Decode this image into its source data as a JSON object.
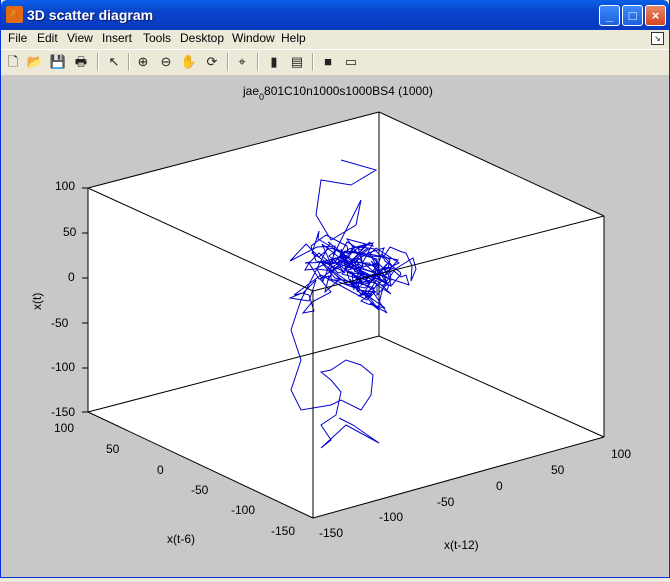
{
  "window": {
    "title": "3D scatter diagram",
    "controls": [
      "_",
      "□",
      "×"
    ]
  },
  "menu": [
    "File",
    "Edit",
    "View",
    "Insert",
    "Tools",
    "Desktop",
    "Window",
    "Help"
  ],
  "toolbar_icons": [
    "new-file",
    "open-folder",
    "save",
    "print",
    "select-arrow",
    "zoom-in",
    "zoom-out",
    "pan",
    "rotate-3d",
    "data-cursor",
    "colorbar",
    "legend",
    "hide-plot-tools",
    "show-plot-tools"
  ],
  "chart_data": {
    "type": "line",
    "title": "jae",
    "title_sub": "0",
    "title_rest": "801C10n1000s1000BS4 (1000)",
    "xlabel": "x(t-6)",
    "ylabel": "x(t-12)",
    "zlabel": "x(t)",
    "xlim": [
      -150,
      100
    ],
    "ylim": [
      -150,
      100
    ],
    "zlim": [
      -150,
      100
    ],
    "x_ticks": [
      "100",
      "50",
      "0",
      "-50",
      "-100",
      "-150"
    ],
    "y_ticks": [
      "-150",
      "-100",
      "-50",
      "0",
      "50",
      "100"
    ],
    "z_ticks": [
      "100",
      "50",
      "0",
      "-50",
      "-100",
      "-150"
    ],
    "box": true,
    "grid": false,
    "series_color": "#0000cc"
  }
}
